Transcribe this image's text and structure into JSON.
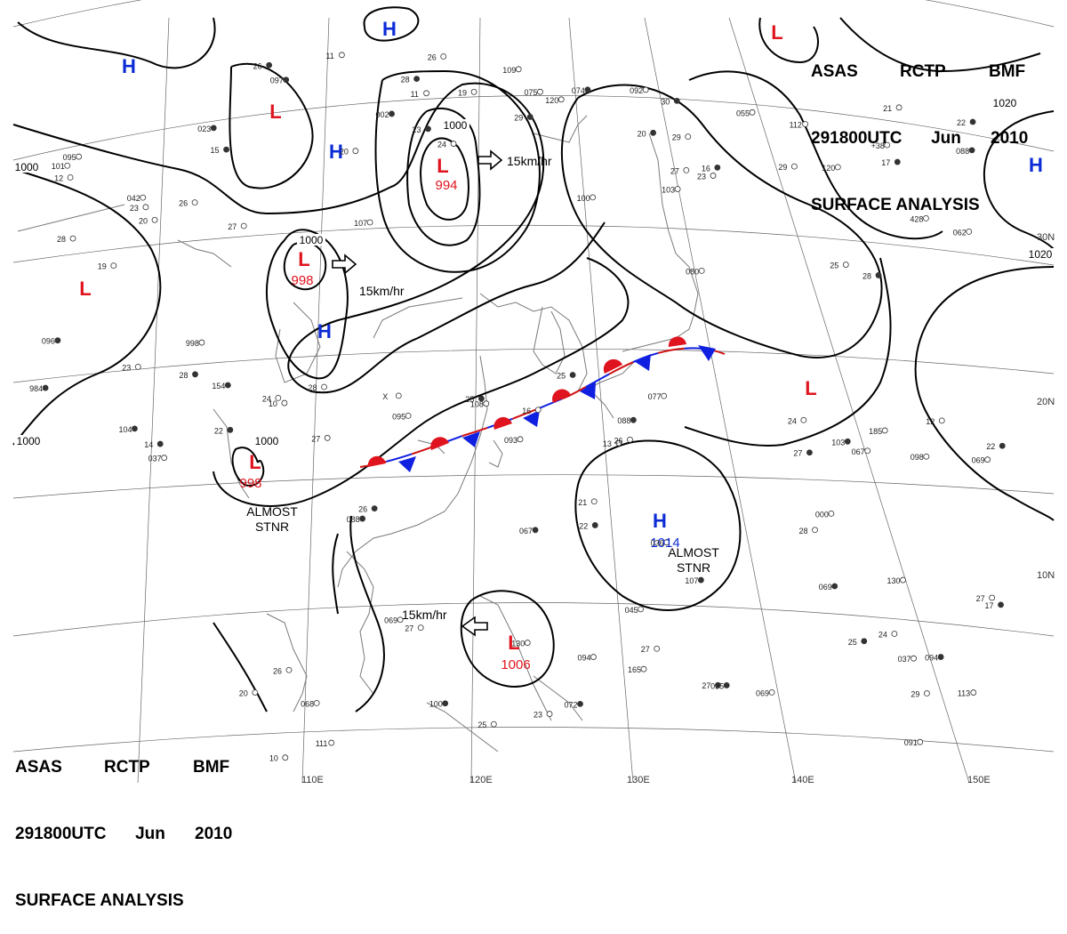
{
  "header": {
    "line1": [
      "ASAS",
      "RCTP",
      "BMF"
    ],
    "line2": [
      "291800UTC",
      "Jun",
      "2010"
    ],
    "line3": "SURFACE ANALYSIS"
  },
  "colors": {
    "high": "#0b2bd6",
    "low": "#e0141e",
    "isobar": "#000000",
    "coast": "#777777",
    "grid": "#555555"
  },
  "isobar_labels": [
    "1000",
    "1000",
    "1000",
    "1000",
    "1000",
    "1020",
    "1020"
  ],
  "pressure_centers": [
    {
      "type": "H",
      "value": ""
    },
    {
      "type": "H",
      "value": ""
    },
    {
      "type": "H",
      "value": ""
    },
    {
      "type": "H",
      "value": ""
    },
    {
      "type": "H",
      "value": ""
    },
    {
      "type": "L",
      "value": ""
    },
    {
      "type": "L",
      "value": ""
    },
    {
      "type": "L",
      "value": ""
    },
    {
      "type": "L",
      "value": ""
    },
    {
      "type": "L",
      "value": "994"
    },
    {
      "type": "L",
      "value": "998"
    },
    {
      "type": "L",
      "value": "998"
    },
    {
      "type": "L",
      "value": "1006"
    },
    {
      "type": "H",
      "value": "1014"
    }
  ],
  "motion_labels": [
    "15km/hr",
    "15km/hr",
    "15km/hr"
  ],
  "annotations": [
    "ALMOST\nSTNR",
    "ALMOST\nSTNR"
  ],
  "lon_labels": [
    "110E",
    "120E",
    "130E",
    "140E",
    "150E"
  ],
  "lat_labels": [
    "30N",
    "20N",
    "10N"
  ],
  "front": {
    "type": "stationary"
  },
  "station_values": [
    "15",
    "11",
    "103",
    "14",
    "13",
    "068",
    "107",
    "+38",
    "12",
    "094",
    "12",
    "107",
    "23",
    "112",
    "10",
    "088",
    "10",
    "045",
    "17",
    "000",
    "24",
    "984",
    "23",
    "075",
    "16",
    "095",
    "16",
    "088",
    "130",
    "428",
    "22",
    "037",
    "23",
    "023",
    "19",
    "055",
    "22",
    "036",
    "25",
    "035",
    "21",
    "067",
    "25",
    "998",
    "20",
    "002",
    "23",
    "037",
    "22",
    "069",
    "23",
    "088",
    "24",
    "113",
    "28",
    "042",
    "26",
    "074",
    "27",
    "077",
    "26",
    "094",
    "29",
    "103",
    "27",
    "101",
    "26",
    "109",
    "27",
    "104",
    "21",
    "111",
    "27",
    "120",
    "28",
    "069",
    "28",
    "095",
    "29",
    "080",
    "28",
    "067",
    "27",
    "069",
    "28",
    "069",
    "29",
    "154",
    "27",
    "100",
    "30",
    "108",
    "26",
    "100",
    "27",
    "062",
    "27",
    "091",
    "26",
    "097",
    "24",
    "092",
    "25",
    "093",
    "26",
    "072",
    "25",
    "098",
    "17",
    "19",
    "20",
    "28",
    "29",
    "24",
    "25",
    "20",
    "165",
    "22",
    "185",
    "130",
    "096",
    "11",
    "120",
    "20",
    "X"
  ]
}
